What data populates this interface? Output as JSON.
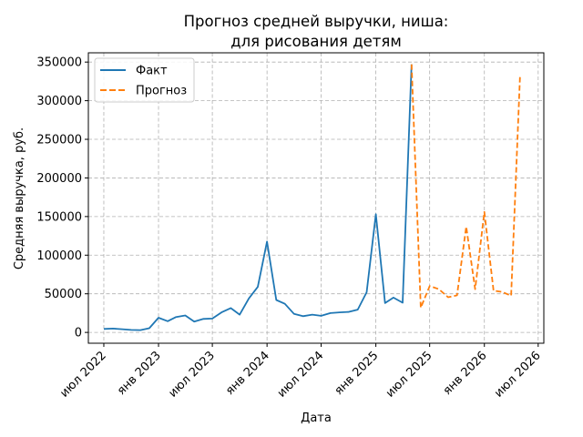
{
  "chart_data": {
    "type": "line",
    "title_line1": "Прогноз средней выручки, ниша:",
    "title_line2": "для рисования детям",
    "xlabel": "Дата",
    "ylabel": "Средняя выручка, руб.",
    "ylim": [
      -14000,
      362000
    ],
    "yticks": [
      0,
      50000,
      100000,
      150000,
      200000,
      250000,
      300000,
      350000
    ],
    "ytick_labels": [
      "0",
      "50000",
      "100000",
      "150000",
      "200000",
      "250000",
      "300000",
      "350000"
    ],
    "xlim": [
      "2022-05-10",
      "2026-07-20"
    ],
    "xticks": [
      {
        "date": "2022-07-01",
        "label": "июл 2022"
      },
      {
        "date": "2023-01-01",
        "label": "янв 2023"
      },
      {
        "date": "2023-07-01",
        "label": "июл 2023"
      },
      {
        "date": "2024-01-01",
        "label": "янв 2024"
      },
      {
        "date": "2024-07-01",
        "label": "июл 2024"
      },
      {
        "date": "2025-01-01",
        "label": "янв 2025"
      },
      {
        "date": "2025-07-01",
        "label": "июл 2025"
      },
      {
        "date": "2026-01-01",
        "label": "янв 2026"
      },
      {
        "date": "2026-07-01",
        "label": "июл 2026"
      }
    ],
    "grid": true,
    "legend_position": "top-left",
    "series": [
      {
        "name": "Факт",
        "color": "#1f77b4",
        "style": "solid",
        "points": [
          [
            "2022-07-01",
            4500
          ],
          [
            "2022-08-01",
            5000
          ],
          [
            "2022-09-01",
            4200
          ],
          [
            "2022-10-01",
            3200
          ],
          [
            "2022-11-01",
            3000
          ],
          [
            "2022-12-01",
            5500
          ],
          [
            "2023-01-01",
            19000
          ],
          [
            "2023-02-01",
            14500
          ],
          [
            "2023-03-01",
            20000
          ],
          [
            "2023-04-01",
            22000
          ],
          [
            "2023-05-01",
            14000
          ],
          [
            "2023-06-01",
            17500
          ],
          [
            "2023-07-01",
            18000
          ],
          [
            "2023-08-01",
            26000
          ],
          [
            "2023-09-01",
            31500
          ],
          [
            "2023-10-01",
            23000
          ],
          [
            "2023-11-01",
            44000
          ],
          [
            "2023-12-01",
            59000
          ],
          [
            "2024-01-01",
            117500
          ],
          [
            "2024-02-01",
            42000
          ],
          [
            "2024-03-01",
            37000
          ],
          [
            "2024-04-01",
            24000
          ],
          [
            "2024-05-01",
            21000
          ],
          [
            "2024-06-01",
            23000
          ],
          [
            "2024-07-01",
            21500
          ],
          [
            "2024-08-01",
            25000
          ],
          [
            "2024-09-01",
            26000
          ],
          [
            "2024-10-01",
            26500
          ],
          [
            "2024-11-01",
            29500
          ],
          [
            "2024-12-01",
            52000
          ],
          [
            "2025-01-01",
            153000
          ],
          [
            "2025-02-01",
            38000
          ],
          [
            "2025-03-01",
            45000
          ],
          [
            "2025-04-01",
            38500
          ],
          [
            "2025-05-01",
            347000
          ]
        ]
      },
      {
        "name": "Прогноз",
        "color": "#ff7f0e",
        "style": "dashed",
        "points": [
          [
            "2025-05-01",
            347000
          ],
          [
            "2025-06-01",
            32000
          ],
          [
            "2025-07-01",
            60000
          ],
          [
            "2025-08-01",
            56000
          ],
          [
            "2025-09-01",
            45500
          ],
          [
            "2025-10-01",
            48000
          ],
          [
            "2025-11-01",
            137000
          ],
          [
            "2025-12-01",
            56000
          ],
          [
            "2026-01-01",
            156000
          ],
          [
            "2026-02-01",
            54000
          ],
          [
            "2026-03-01",
            52500
          ],
          [
            "2026-04-01",
            47500
          ],
          [
            "2026-05-01",
            333000
          ]
        ]
      }
    ]
  }
}
